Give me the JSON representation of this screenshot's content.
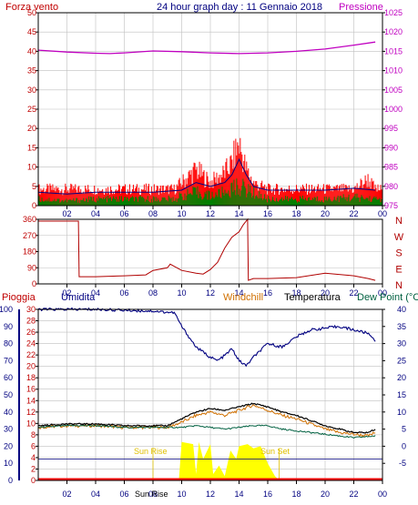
{
  "header": {
    "left_label": "Forza vento",
    "title": "24 hour graph day : 11 Gennaio 2018",
    "right_label": "Pressione"
  },
  "colors": {
    "plot_bg": "#ffffff",
    "grid": "#bfbfbf",
    "frame": "#000000",
    "wind_gust": "#ff0000",
    "wind_speed": "#008000",
    "wind_avg": "#000080",
    "pressure": "#c000c0",
    "wind_dir": "#b00000",
    "humidity": "#000080",
    "windchill": "#d07000",
    "temperature": "#000000",
    "dewpoint": "#006040",
    "rain": "#ff0000",
    "sun": "#ffff00",
    "sun_text": "#e0c000",
    "left_axis_blue": "#000080",
    "left_axis_red": "#c00000"
  },
  "chart_data": [
    {
      "id": "wind_pressure",
      "type": "line",
      "x_tick_labels": [
        "02",
        "04",
        "06",
        "08",
        "10",
        "12",
        "14",
        "16",
        "18",
        "20",
        "22",
        "00"
      ],
      "y_left_label": "Forza vento",
      "y_left_ticks": [
        "0",
        "5",
        "10",
        "15",
        "20",
        "25",
        "30",
        "35",
        "40",
        "45",
        "50"
      ],
      "ylim_left": [
        0,
        50
      ],
      "y_right_label": "Pressione",
      "y_right_ticks": [
        "975",
        "980",
        "985",
        "990",
        "995",
        "1000",
        "1005",
        "1010",
        "1015",
        "1020",
        "1025"
      ],
      "ylim_right": [
        975,
        1025
      ],
      "pressure": {
        "x": [
          0,
          2,
          4,
          5,
          6,
          8,
          10,
          12,
          14,
          16,
          18,
          20,
          22,
          23.5
        ],
        "values": [
          1015.3,
          1014.8,
          1014.5,
          1014.4,
          1014.6,
          1015.1,
          1014.9,
          1014.6,
          1014.4,
          1014.6,
          1015.0,
          1015.6,
          1016.6,
          1017.4
        ]
      },
      "wind_gust": {
        "x": [
          0,
          2,
          4,
          6,
          8,
          9.5,
          10,
          11,
          11.5,
          12,
          13,
          13.5,
          14,
          14.5,
          15,
          16,
          18,
          20,
          22,
          23,
          23.5
        ],
        "values": [
          5,
          5,
          5,
          5,
          5,
          5,
          7,
          11,
          9,
          7,
          10,
          13,
          19,
          11,
          7,
          5,
          5,
          5,
          5,
          8,
          5
        ]
      },
      "wind_speed": {
        "x": [
          0,
          2,
          4,
          6,
          8,
          9.5,
          10,
          11,
          12,
          13,
          14,
          15,
          16,
          18,
          20,
          22,
          23.5
        ],
        "values": [
          2,
          1.5,
          2,
          2,
          2,
          2,
          3,
          4,
          3,
          4,
          6,
          4,
          2,
          2,
          2,
          2.5,
          2
        ]
      },
      "wind_avg": {
        "x": [
          0,
          2,
          4,
          6,
          8,
          10,
          11,
          12,
          13,
          13.5,
          14,
          14.5,
          15,
          16,
          18,
          20,
          22,
          23.5
        ],
        "values": [
          3.5,
          3,
          3.5,
          3.5,
          3.5,
          4,
          6,
          5,
          6,
          8,
          12,
          8,
          5,
          4,
          4,
          4,
          4.5,
          4
        ]
      }
    },
    {
      "id": "wind_direction",
      "type": "line",
      "x_tick_labels": [
        "02",
        "04",
        "06",
        "08",
        "10",
        "12",
        "14",
        "16",
        "18",
        "20",
        "22",
        "00"
      ],
      "y_left_ticks": [
        "0",
        "90",
        "180",
        "270",
        "360"
      ],
      "ylim_left": [
        0,
        360
      ],
      "y_right_ticks": [
        "N",
        "W",
        "S",
        "E",
        "N"
      ],
      "direction": {
        "x": [
          0,
          2.8,
          2.85,
          4,
          6,
          7.5,
          8,
          9,
          9.2,
          10,
          11,
          11.5,
          12,
          12.5,
          13,
          13.5,
          14,
          14.3,
          14.6,
          14.65,
          15,
          16,
          18,
          20,
          22,
          23,
          23.5
        ],
        "values": [
          350,
          350,
          40,
          40,
          45,
          50,
          75,
          90,
          110,
          75,
          60,
          55,
          80,
          120,
          200,
          260,
          290,
          330,
          360,
          20,
          30,
          30,
          35,
          60,
          45,
          30,
          20
        ]
      }
    },
    {
      "id": "temp_humidity_rain",
      "type": "line",
      "legend": [
        "Pioggia",
        "Umidita",
        "Windchill",
        "Temperatura",
        "Dew Point (°C"
      ],
      "x_tick_labels": [
        "02",
        "04",
        "06",
        "08",
        "10",
        "12",
        "14",
        "16",
        "18",
        "20",
        "22",
        "00"
      ],
      "y_humidity_ticks": [
        "0",
        "10",
        "20",
        "30",
        "40",
        "50",
        "60",
        "70",
        "80",
        "90",
        "100"
      ],
      "ylim_humidity": [
        0,
        100
      ],
      "y_rain_ticks": [
        "0",
        "2",
        "4",
        "6",
        "8",
        "10",
        "12",
        "14",
        "16",
        "18",
        "20",
        "22",
        "24",
        "26",
        "28",
        "30"
      ],
      "ylim_rain": [
        0,
        30
      ],
      "y_temp_ticks": [
        "-5",
        "0",
        "5",
        "10",
        "15",
        "20",
        "25",
        "30",
        "35",
        "40"
      ],
      "ylim_temp": [
        -10,
        40
      ],
      "sun_rise_label": "Sun Rise",
      "sun_set_label": "Sun Set",
      "sun_rise": 8.0,
      "sun_set": 16.8,
      "bottom_label": "Sun Rise",
      "humidity": {
        "x": [
          0,
          4,
          8,
          9.5,
          10,
          11,
          12,
          12.5,
          13,
          13.5,
          14,
          14.5,
          15,
          16,
          17,
          18,
          19,
          20,
          21,
          22,
          23,
          23.5
        ],
        "values": [
          100,
          100,
          99,
          98,
          90,
          78,
          72,
          70,
          73,
          77,
          70,
          67,
          72,
          80,
          78,
          84,
          88,
          89,
          90,
          88,
          86,
          82
        ]
      },
      "temperature": {
        "x": [
          0,
          2,
          4,
          6,
          8,
          9,
          10,
          11,
          12,
          13,
          14,
          15,
          16,
          17,
          18,
          19,
          20,
          21,
          22,
          23,
          23.5
        ],
        "values": [
          6,
          6.5,
          6.5,
          6,
          6,
          6,
          8,
          10,
          11,
          10.5,
          11.5,
          12.5,
          11.5,
          10,
          9,
          7.5,
          6,
          5,
          4,
          4,
          5
        ]
      },
      "windchill": {
        "x": [
          0,
          2,
          4,
          6,
          8,
          9,
          10,
          11,
          12,
          13,
          14,
          15,
          16,
          17,
          18,
          19,
          20,
          21,
          22,
          23,
          23.5
        ],
        "values": [
          5.5,
          6,
          6,
          5.5,
          5.5,
          5.5,
          7,
          9,
          10,
          9,
          10.5,
          12,
          10.5,
          9,
          8,
          6.5,
          5,
          4,
          3.5,
          3,
          4
        ]
      },
      "dewpoint": {
        "x": [
          0,
          2,
          4,
          6,
          8,
          10,
          11,
          12,
          13,
          14,
          15,
          16,
          17,
          18,
          20,
          22,
          23.5
        ],
        "values": [
          5.5,
          6,
          6,
          5.5,
          5.5,
          5.5,
          6,
          5.5,
          5,
          5.5,
          6,
          6,
          5,
          4.5,
          3.5,
          2.5,
          3
        ]
      },
      "sun": {
        "x": [
          8,
          9.8,
          10,
          10.8,
          11,
          11.2,
          11.5,
          12,
          12.2,
          12.6,
          13,
          13.4,
          13.8,
          14,
          14.6,
          15,
          15.5,
          16,
          16.5,
          16.8
        ],
        "values": [
          0,
          0,
          18,
          17,
          3,
          18,
          10,
          17,
          3,
          7,
          2,
          14,
          10,
          16,
          17,
          15,
          16,
          8,
          2,
          0
        ]
      },
      "sun_max": 20,
      "sun_threshold_line": 10,
      "rain": {
        "x": [
          0,
          23.7
        ],
        "values": [
          0,
          0
        ]
      }
    }
  ]
}
